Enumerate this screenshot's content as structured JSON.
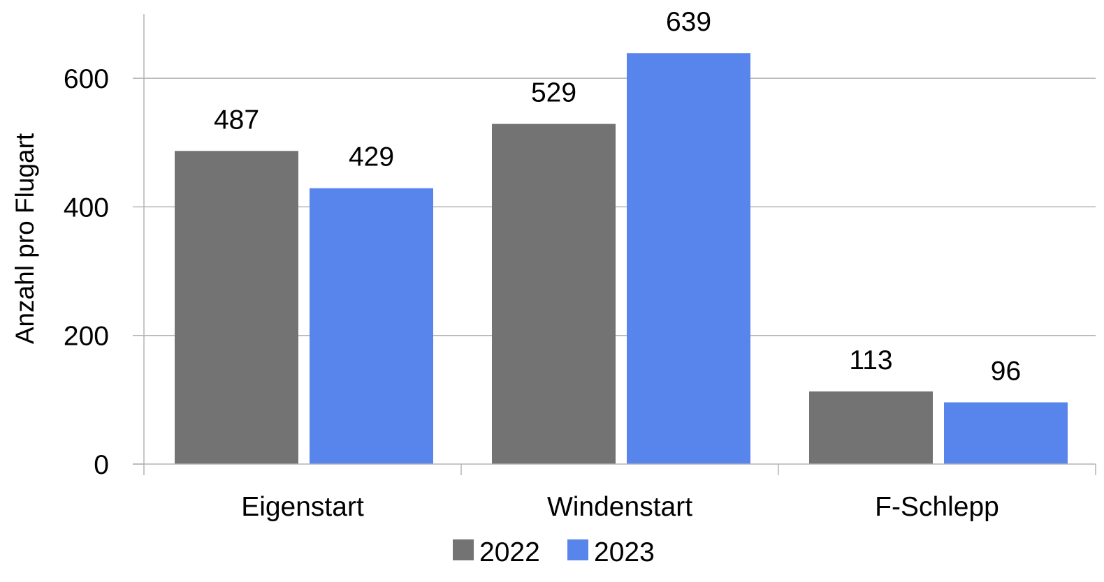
{
  "chart_data": {
    "type": "bar",
    "title": "",
    "xlabel": "",
    "ylabel": "Anzahl pro Flugart",
    "categories": [
      "Eigenstart",
      "Windenstart",
      "F-Schlepp"
    ],
    "series": [
      {
        "name": "2022",
        "values": [
          487,
          529,
          113
        ],
        "color": "#737373"
      },
      {
        "name": "2023",
        "values": [
          429,
          639,
          96
        ],
        "color": "#5885eb"
      }
    ],
    "ylim": [
      0,
      700
    ],
    "yticks": [
      0,
      200,
      400,
      600
    ],
    "grid": true,
    "legend_position": "bottom",
    "data_labels": true
  }
}
